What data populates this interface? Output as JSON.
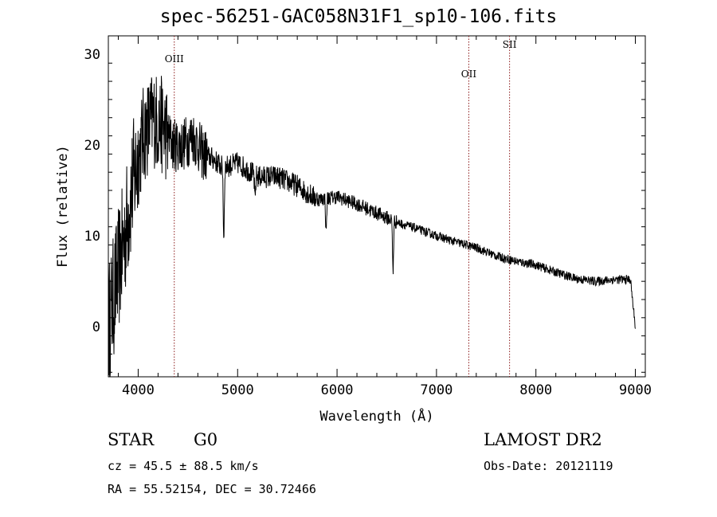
{
  "title": "spec-56251-GAC058N31F1_sp10-106.fits",
  "info": {
    "class_label": "STAR",
    "subclass_label": "G0",
    "survey": "LAMOST DR2",
    "cz": "cz = 45.5 ± 88.5 km/s",
    "obs_date": "Obs-Date: 20121119",
    "coords": "RA =  55.52154, DEC =  30.72466"
  },
  "chart_data": {
    "type": "line",
    "title": "spec-56251-GAC058N31F1_sp10-106.fits",
    "xlabel": "Wavelength (Å)",
    "ylabel": "Flux (relative)",
    "xlim": [
      3700,
      9100
    ],
    "ylim": [
      -5.5,
      32
    ],
    "xticks": [
      4000,
      5000,
      6000,
      7000,
      8000,
      9000
    ],
    "yticks": [
      0,
      10,
      20,
      30
    ],
    "grid": false,
    "line_color": "#000000",
    "marker_color": "#8b1a1a",
    "lines": [
      {
        "name": "OIII",
        "wavelength": 4363
      },
      {
        "name": "OII",
        "wavelength": 7325
      },
      {
        "name": "SII",
        "wavelength": 7735
      }
    ],
    "spectrum_anchor_points": [
      {
        "x": 3700,
        "y": 0
      },
      {
        "x": 3780,
        "y": 5
      },
      {
        "x": 3850,
        "y": 9
      },
      {
        "x": 3950,
        "y": 16
      },
      {
        "x": 4050,
        "y": 21
      },
      {
        "x": 4150,
        "y": 23
      },
      {
        "x": 4250,
        "y": 22
      },
      {
        "x": 4350,
        "y": 20
      },
      {
        "x": 4450,
        "y": 20
      },
      {
        "x": 4550,
        "y": 21
      },
      {
        "x": 4650,
        "y": 19
      },
      {
        "x": 4750,
        "y": 18.5
      },
      {
        "x": 4850,
        "y": 17.5
      },
      {
        "x": 5000,
        "y": 18
      },
      {
        "x": 5200,
        "y": 16.5
      },
      {
        "x": 5400,
        "y": 16.5
      },
      {
        "x": 5600,
        "y": 15.5
      },
      {
        "x": 5800,
        "y": 14
      },
      {
        "x": 6000,
        "y": 14.3
      },
      {
        "x": 6200,
        "y": 13.5
      },
      {
        "x": 6400,
        "y": 12.5
      },
      {
        "x": 6600,
        "y": 11.5
      },
      {
        "x": 6800,
        "y": 10.8
      },
      {
        "x": 7000,
        "y": 10
      },
      {
        "x": 7200,
        "y": 9.3
      },
      {
        "x": 7400,
        "y": 8.7
      },
      {
        "x": 7600,
        "y": 7.8
      },
      {
        "x": 7800,
        "y": 7.2
      },
      {
        "x": 8000,
        "y": 6.8
      },
      {
        "x": 8200,
        "y": 6
      },
      {
        "x": 8400,
        "y": 5.3
      },
      {
        "x": 8600,
        "y": 5
      },
      {
        "x": 8800,
        "y": 5.2
      },
      {
        "x": 8950,
        "y": 5.2
      },
      {
        "x": 9000,
        "y": 0
      }
    ],
    "absorption_features": [
      {
        "x": 4861,
        "depth": 8.5
      },
      {
        "x": 5175,
        "depth": 3
      },
      {
        "x": 5890,
        "depth": 4
      },
      {
        "x": 6563,
        "depth": 6
      }
    ]
  }
}
